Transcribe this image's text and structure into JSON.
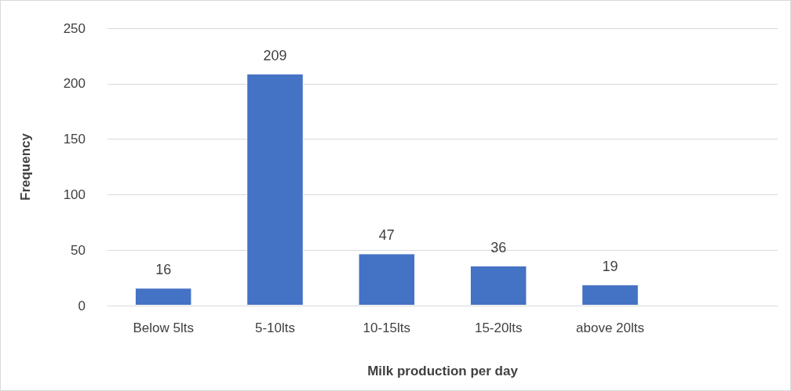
{
  "chart_data": {
    "type": "bar",
    "xlabel": "Milk production per day",
    "ylabel": "Frequency",
    "categories": [
      "Below 5lts",
      "5-10lts",
      "10-15lts",
      "15-20lts",
      "above 20lts",
      null
    ],
    "values": [
      16,
      209,
      47,
      36,
      19,
      null
    ],
    "color": "#4472c4",
    "ylim": [
      0,
      250
    ],
    "yticks": [
      0,
      50,
      100,
      150,
      200,
      250
    ],
    "grid": "y",
    "data_labels": true
  }
}
